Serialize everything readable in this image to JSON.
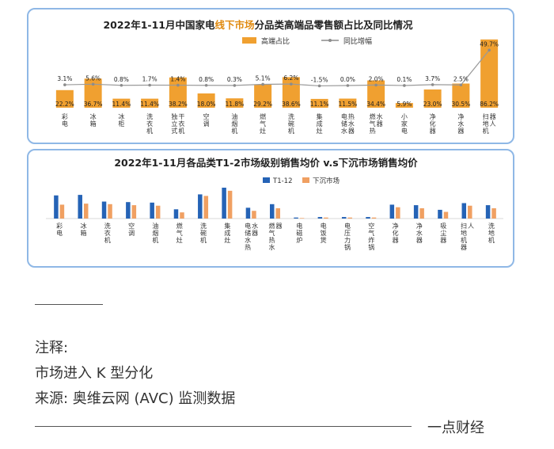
{
  "chart_data": [
    {
      "type": "bar",
      "title_parts": [
        "2022年1-11月中国家电",
        "线下市场",
        "分品类高端品零售额占比及同比情况"
      ],
      "legend": [
        "高端占比",
        "同比增幅"
      ],
      "legend_position": "top-right",
      "categories": [
        "彩电",
        "冰箱",
        "冰柜",
        "洗衣机",
        "独立式干衣机",
        "空调",
        "油烟机",
        "燃气灶",
        "洗碗机",
        "集成灶",
        "电储水热水器",
        "燃气热水器",
        "小家电",
        "净化器",
        "净水器",
        "扫地机器人"
      ],
      "series": [
        {
          "name": "高端占比",
          "values": [
            22.2,
            36.7,
            11.4,
            11.4,
            38.2,
            18.0,
            11.8,
            29.2,
            38.6,
            11.1,
            11.5,
            34.4,
            5.9,
            23.0,
            30.5,
            86.2
          ],
          "labels": [
            "22.2%",
            "36.7%",
            "11.4%",
            "11.4%",
            "38.2%",
            "18.0%",
            "11.8%",
            "29.2%",
            "38.6%",
            "11.1%",
            "11.5%",
            "34.4%",
            "5.9%",
            "23.0%",
            "30.5%",
            "86.2%"
          ]
        },
        {
          "name": "同比增幅",
          "values": [
            3.1,
            5.6,
            0.8,
            1.7,
            1.4,
            0.8,
            0.3,
            5.1,
            6.2,
            -1.5,
            0.0,
            2.0,
            0.1,
            3.7,
            2.5,
            49.7
          ],
          "labels": [
            "3.1%",
            "5.6%",
            "0.8%",
            "1.7%",
            "1.4%",
            "0.8%",
            "0.3%",
            "5.1%",
            "6.2%",
            "-1.5%",
            "0.0%",
            "2.0%",
            "0.1%",
            "3.7%",
            "2.5%",
            "49.7%"
          ]
        }
      ],
      "colors": {
        "bar": "#f0a030",
        "line": "#8c8c8c"
      }
    },
    {
      "type": "bar",
      "title": "2022年1-11月各品类T1-2市场级别销售均价 v.s下沉市场销售均价",
      "legend": [
        "T1-12",
        "下沉市场"
      ],
      "legend_position": "top-center",
      "categories": [
        "彩电",
        "冰箱",
        "洗衣机",
        "空调",
        "油烟机",
        "燃气灶",
        "洗碗机",
        "集成灶",
        "电储水热水器",
        "燃气热水器",
        "电磁炉",
        "电饭煲",
        "电压力锅",
        "空气炸锅",
        "净化器",
        "净水器",
        "吸尘器",
        "扫地机器人",
        "洗地机"
      ],
      "series": [
        {
          "name": "T1-12",
          "values": [
            4.5,
            4.6,
            3.3,
            3.2,
            3.1,
            1.8,
            4.7,
            6.0,
            2.1,
            2.8,
            0.2,
            0.3,
            0.3,
            0.3,
            2.7,
            2.6,
            1.7,
            3.0,
            2.6
          ]
        },
        {
          "name": "下沉市场",
          "values": [
            2.7,
            2.9,
            2.8,
            2.6,
            2.5,
            1.2,
            4.4,
            5.4,
            1.5,
            2.0,
            0.1,
            0.2,
            0.2,
            0.2,
            2.2,
            2.0,
            1.3,
            2.5,
            2.0
          ]
        }
      ],
      "colors": {
        "a": "#2563b6",
        "b": "#f0a062"
      }
    }
  ],
  "notes": {
    "line1": "注释:",
    "line2": "市场进入 K 型分化",
    "line3": "来源: 奥维云网 (AVC) 监测数据"
  },
  "brand": "一点财经"
}
